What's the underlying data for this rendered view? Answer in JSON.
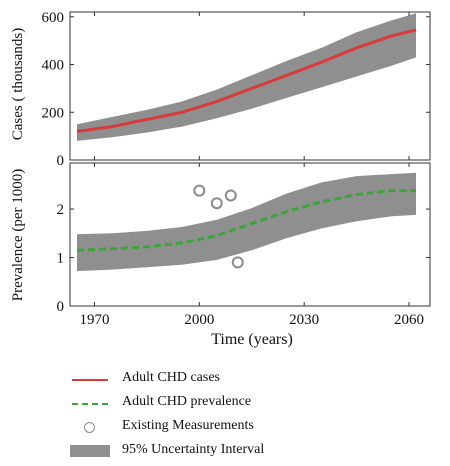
{
  "colors": {
    "cases_line": "#d93a3a",
    "prevalence_line": "#3aa63a",
    "band": "#8f8f8f",
    "measurement": "#8a8a8a"
  },
  "chart_data": [
    {
      "type": "line",
      "title": "",
      "xlabel": "",
      "ylabel": "Cases ( thousands)",
      "xlim": [
        1963,
        2066
      ],
      "ylim": [
        0,
        620
      ],
      "yticks": [
        0,
        200,
        400,
        600
      ],
      "grid": false,
      "series": [
        {
          "name": "Adult CHD cases",
          "x": [
            1965,
            1975,
            1985,
            1995,
            2005,
            2015,
            2025,
            2035,
            2045,
            2055,
            2062
          ],
          "values": [
            120,
            140,
            170,
            200,
            245,
            300,
            355,
            410,
            470,
            520,
            545
          ]
        }
      ],
      "band": {
        "name": "95% Uncertainty Interval",
        "x": [
          1965,
          1975,
          1985,
          1995,
          2005,
          2015,
          2025,
          2035,
          2045,
          2055,
          2062
        ],
        "lower": [
          80,
          95,
          115,
          140,
          175,
          215,
          260,
          305,
          350,
          395,
          430
        ],
        "upper": [
          150,
          180,
          210,
          245,
          295,
          355,
          415,
          470,
          535,
          585,
          615
        ]
      }
    },
    {
      "type": "line",
      "title": "",
      "xlabel": "Time (years)",
      "ylabel": "Prevalence (per 1000)",
      "xlim": [
        1963,
        2066
      ],
      "ylim": [
        0,
        2.95
      ],
      "yticks": [
        0,
        1,
        2
      ],
      "xticks": [
        1970,
        2000,
        2030,
        2060
      ],
      "grid": false,
      "series": [
        {
          "name": "Adult CHD prevalence",
          "x": [
            1965,
            1975,
            1985,
            1995,
            2005,
            2015,
            2025,
            2035,
            2045,
            2055,
            2062
          ],
          "values": [
            1.15,
            1.18,
            1.22,
            1.3,
            1.45,
            1.7,
            1.95,
            2.15,
            2.3,
            2.38,
            2.38
          ]
        }
      ],
      "band": {
        "name": "95% Uncertainty Interval",
        "x": [
          1965,
          1975,
          1985,
          1995,
          2005,
          2015,
          2025,
          2035,
          2045,
          2055,
          2062
        ],
        "lower": [
          0.72,
          0.75,
          0.8,
          0.85,
          0.95,
          1.15,
          1.4,
          1.6,
          1.75,
          1.85,
          1.88
        ],
        "upper": [
          1.48,
          1.5,
          1.55,
          1.63,
          1.78,
          2.02,
          2.32,
          2.55,
          2.68,
          2.72,
          2.75
        ]
      },
      "points": {
        "name": "Existing Measurements",
        "x": [
          2000,
          2005,
          2009,
          2011
        ],
        "y": [
          2.38,
          2.12,
          2.28,
          0.9
        ]
      }
    }
  ],
  "legend": [
    {
      "label": "Adult CHD cases",
      "kind": "line",
      "color": "#d93a3a"
    },
    {
      "label": "Adult CHD prevalence",
      "kind": "dashed",
      "color": "#3aa63a"
    },
    {
      "label": "Existing Measurements",
      "kind": "circle",
      "color": "#8a8a8a"
    },
    {
      "label": "95% Uncertainty Interval",
      "kind": "band",
      "color": "#8f8f8f"
    }
  ]
}
